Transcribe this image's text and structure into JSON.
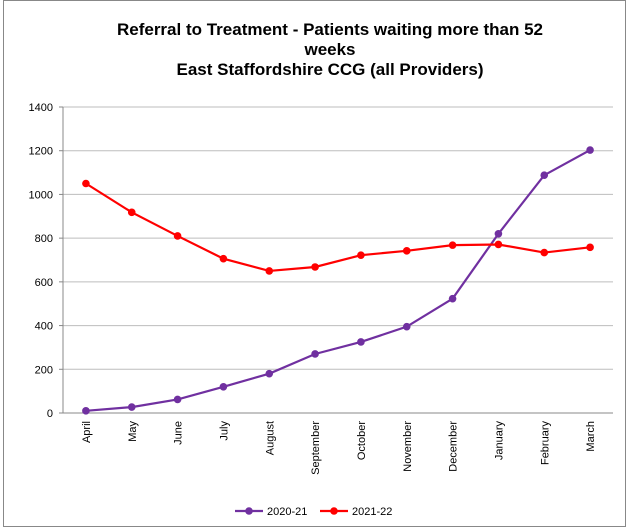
{
  "chart_data": {
    "type": "line",
    "title": "Referral to Treatment - Patients waiting more than 52 weeks",
    "subtitle": "East Staffordshire CCG (all Providers)",
    "categories": [
      "April",
      "May",
      "June",
      "July",
      "August",
      "September",
      "October",
      "November",
      "December",
      "January",
      "February",
      "March"
    ],
    "series": [
      {
        "name": "2020-21",
        "color": "#7030a0",
        "values": [
          10,
          27,
          62,
          120,
          180,
          270,
          325,
          395,
          523,
          820,
          1088,
          1203
        ]
      },
      {
        "name": "2021-22",
        "color": "#ff0000",
        "values": [
          1050,
          918,
          810,
          706,
          650,
          668,
          722,
          742,
          768,
          771,
          734,
          758
        ]
      }
    ],
    "ylim": [
      0,
      1400
    ],
    "yticks": [
      0,
      200,
      400,
      600,
      800,
      1000,
      1200,
      1400
    ],
    "grid": true,
    "legend": "bottom"
  }
}
